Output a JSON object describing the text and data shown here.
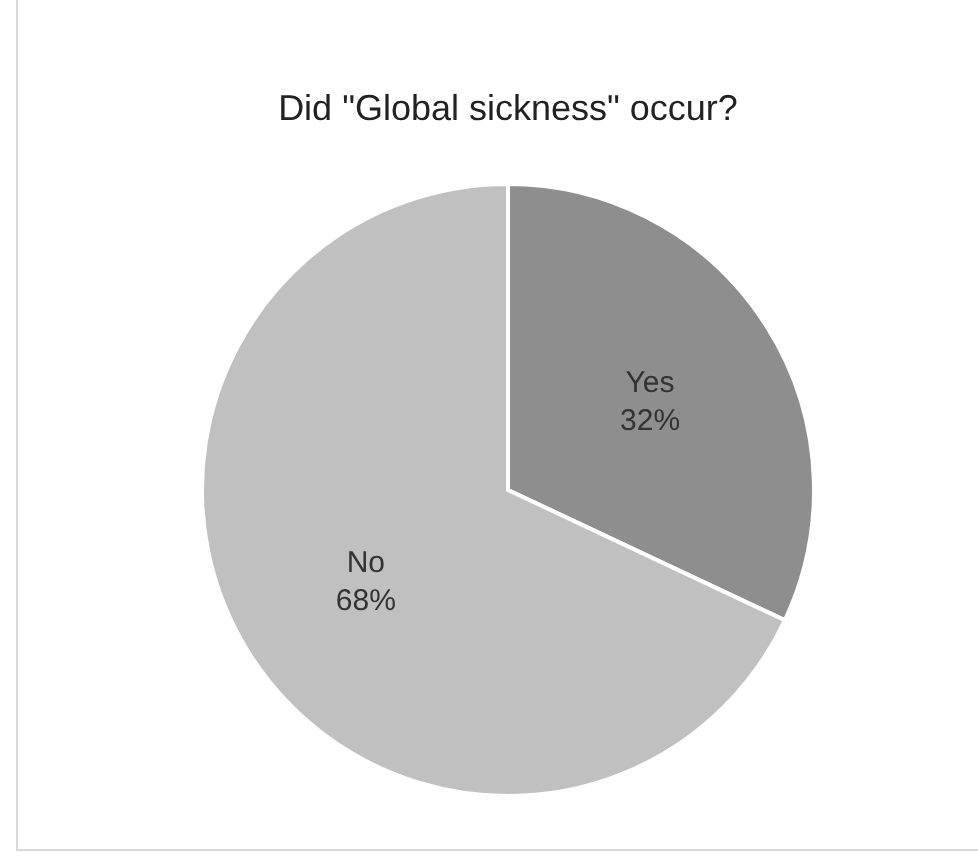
{
  "chart_data": {
    "type": "pie",
    "title": "Did \"Global sickness\" occur?",
    "categories": [
      "Yes",
      "No"
    ],
    "values": [
      32,
      68
    ],
    "colors": [
      "#8e8e8e",
      "#c0c0c0"
    ],
    "value_labels": [
      "32%",
      "68%"
    ]
  }
}
